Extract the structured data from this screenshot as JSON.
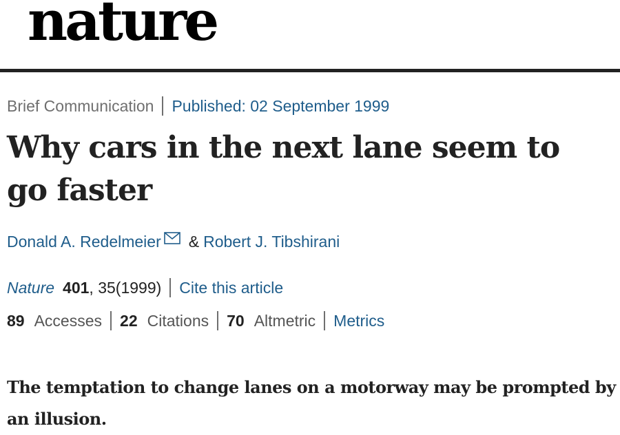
{
  "masthead": {
    "logo_text": "nature"
  },
  "article": {
    "type": "Brief Communication",
    "published": "Published: 02 September 1999",
    "title": "Why cars in the next lane seem to go faster",
    "authors": [
      {
        "name": "Donald A. Redelmeier",
        "has_email_icon": true
      },
      {
        "name": "Robert J. Tibshirani"
      }
    ],
    "author_separator": "&",
    "citation": {
      "journal": "Nature",
      "volume": "401",
      "pages_year": ", 35(1999)",
      "cite_link": "Cite this article"
    },
    "metrics": {
      "accesses_count": "89",
      "accesses_label": "Accesses",
      "citations_count": "22",
      "citations_label": "Citations",
      "altmetric_count": "70",
      "altmetric_label": "Altmetric",
      "metrics_link": "Metrics"
    },
    "standfirst": "The temptation to change lanes on a motorway may be prompted by an illusion."
  },
  "colors": {
    "link": "#1f5d8b",
    "text": "#222222",
    "muted": "#6f6f6f"
  },
  "icons": {
    "email": "email-icon"
  }
}
